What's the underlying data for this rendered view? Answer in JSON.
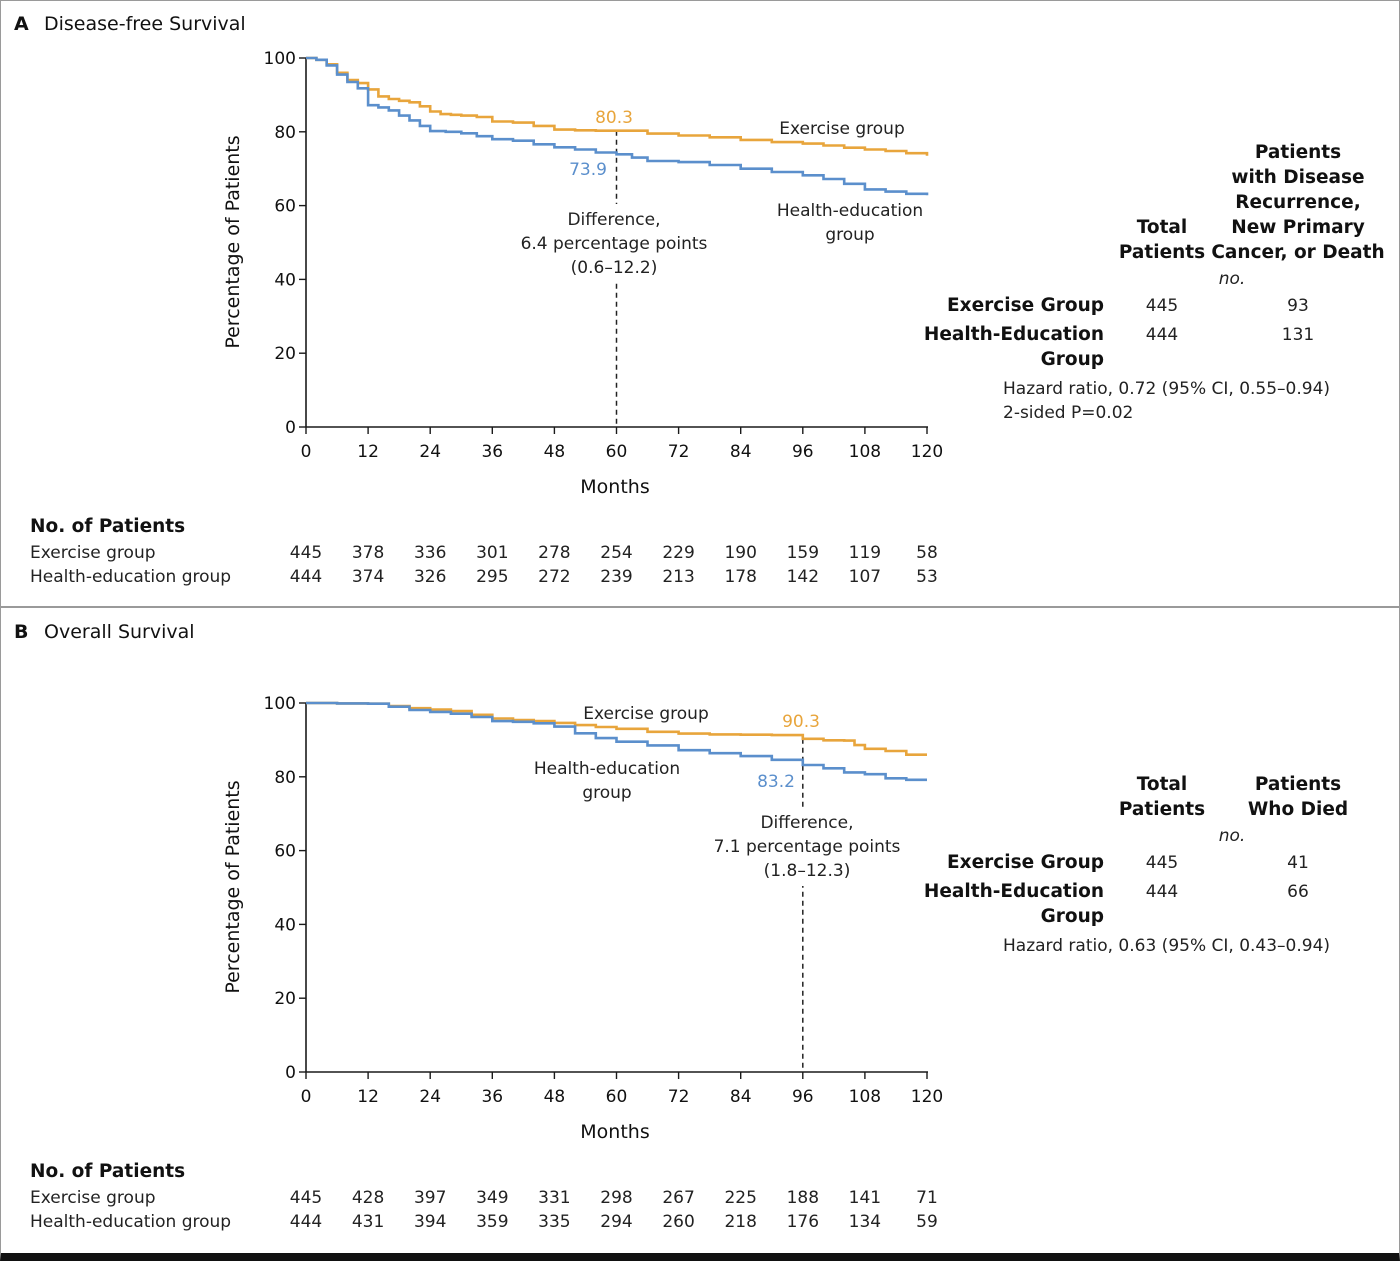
{
  "colors": {
    "exercise": "#E8A53C",
    "health": "#5B8FCC",
    "axis": "#1a1a1a"
  },
  "panels": [
    {
      "letter": "A",
      "title": "Disease-free Survival",
      "ylabel": "Percentage of Patients",
      "xlabel": "Months",
      "yticks": [
        "0",
        "20",
        "40",
        "60",
        "80",
        "100"
      ],
      "xticks": [
        "0",
        "12",
        "24",
        "36",
        "48",
        "60",
        "72",
        "84",
        "96",
        "108",
        "120"
      ],
      "annotations": {
        "exercise_label": "Exercise group",
        "health_label_1": "Health-education",
        "health_label_2": "group",
        "exercise_value": "80.3",
        "health_value": "73.9",
        "diff_1": "Difference,",
        "diff_2": "6.4 percentage points",
        "diff_3": "(0.6–12.2)"
      },
      "table": {
        "col1_h1": "Total",
        "col1_h2": "Patients",
        "col2_h1": "Patients",
        "col2_h2": "with Disease",
        "col2_h3": "Recurrence,",
        "col2_h4": "New Primary",
        "col2_h5": "Cancer, or Death",
        "units": "no.",
        "row1_label": "Exercise Group",
        "row1_total": "445",
        "row1_events": "93",
        "row2_label_1": "Health-Education",
        "row2_label_2": "Group",
        "row2_total": "444",
        "row2_events": "131",
        "stat_1": "Hazard ratio, 0.72 (95% CI, 0.55–0.94)",
        "stat_2": "2-sided P=0.02"
      },
      "risk": {
        "header": "No. of Patients",
        "exercise_label": "Exercise group",
        "health_label": "Health-education group",
        "exercise": [
          "445",
          "378",
          "336",
          "301",
          "278",
          "254",
          "229",
          "190",
          "159",
          "119",
          "58"
        ],
        "health": [
          "444",
          "374",
          "326",
          "295",
          "272",
          "239",
          "213",
          "178",
          "142",
          "107",
          "53"
        ]
      }
    },
    {
      "letter": "B",
      "title": "Overall Survival",
      "ylabel": "Percentage of Patients",
      "xlabel": "Months",
      "yticks": [
        "0",
        "20",
        "40",
        "60",
        "80",
        "100"
      ],
      "xticks": [
        "0",
        "12",
        "24",
        "36",
        "48",
        "60",
        "72",
        "84",
        "96",
        "108",
        "120"
      ],
      "annotations": {
        "exercise_label": "Exercise group",
        "health_label_1": "Health-education",
        "health_label_2": "group",
        "exercise_value": "90.3",
        "health_value": "83.2",
        "diff_1": "Difference,",
        "diff_2": "7.1 percentage points",
        "diff_3": "(1.8–12.3)"
      },
      "table": {
        "col1_h1": "Total",
        "col1_h2": "Patients",
        "col2_h1": "Patients",
        "col2_h2": "Who Died",
        "units": "no.",
        "row1_label": "Exercise Group",
        "row1_total": "445",
        "row1_events": "41",
        "row2_label_1": "Health-Education",
        "row2_label_2": "Group",
        "row2_total": "444",
        "row2_events": "66",
        "stat_1": "Hazard ratio, 0.63 (95% CI, 0.43–0.94)"
      },
      "risk": {
        "header": "No. of Patients",
        "exercise_label": "Exercise group",
        "health_label": "Health-education group",
        "exercise": [
          "445",
          "428",
          "397",
          "349",
          "331",
          "298",
          "267",
          "225",
          "188",
          "141",
          "71"
        ],
        "health": [
          "444",
          "431",
          "394",
          "359",
          "335",
          "294",
          "260",
          "218",
          "176",
          "134",
          "59"
        ]
      }
    }
  ],
  "chart_data": [
    {
      "type": "line",
      "title": "Disease-free Survival",
      "xlabel": "Months",
      "ylabel": "Percentage of Patients",
      "xlim": [
        0,
        120
      ],
      "ylim": [
        0,
        100
      ],
      "step": true,
      "marker": {
        "x": 60,
        "label": "Difference, 6.4 percentage points (0.6–12.2)"
      },
      "series": [
        {
          "name": "Exercise group",
          "x": [
            0,
            2,
            4,
            6,
            8,
            10,
            12,
            14,
            16,
            18,
            20,
            22,
            24,
            26,
            28,
            30,
            33,
            36,
            40,
            44,
            48,
            52,
            56,
            60,
            66,
            72,
            78,
            84,
            90,
            96,
            100,
            104,
            108,
            112,
            116,
            120
          ],
          "y": [
            100,
            99.5,
            98.3,
            96,
            94,
            93.2,
            91.5,
            89.6,
            88.9,
            88.4,
            88,
            86.9,
            85.5,
            84.8,
            84.6,
            84.4,
            84,
            82.8,
            82.5,
            81.6,
            80.6,
            80.4,
            80.3,
            80.3,
            79.5,
            79,
            78.5,
            77.8,
            77.2,
            76.8,
            76.3,
            75.7,
            75.2,
            74.8,
            74.2,
            73.5
          ]
        },
        {
          "name": "Health-education group",
          "x": [
            0,
            2,
            4,
            6,
            8,
            10,
            12,
            14,
            16,
            18,
            20,
            22,
            24,
            27,
            30,
            33,
            36,
            40,
            44,
            48,
            52,
            56,
            60,
            63,
            66,
            72,
            78,
            84,
            90,
            96,
            100,
            104,
            108,
            112,
            116,
            120
          ],
          "y": [
            100,
            99.5,
            98,
            95.5,
            93.5,
            91.8,
            87.2,
            86.6,
            85.8,
            84.4,
            83.1,
            81.6,
            80.2,
            80,
            79.6,
            78.8,
            78,
            77.6,
            76.6,
            75.8,
            75.2,
            74.4,
            73.9,
            73,
            72.1,
            71.8,
            71,
            70,
            69.1,
            68.2,
            67.2,
            65.9,
            64.4,
            63.8,
            63.2,
            62.8
          ]
        }
      ]
    },
    {
      "type": "line",
      "title": "Overall Survival",
      "xlabel": "Months",
      "ylabel": "Percentage of Patients",
      "xlim": [
        0,
        120
      ],
      "ylim": [
        0,
        100
      ],
      "step": true,
      "marker": {
        "x": 96,
        "label": "Difference, 7.1 percentage points (1.8–12.3)"
      },
      "series": [
        {
          "name": "Exercise group",
          "x": [
            0,
            6,
            12,
            16,
            20,
            24,
            28,
            32,
            36,
            40,
            44,
            48,
            52,
            56,
            60,
            66,
            72,
            78,
            84,
            90,
            96,
            100,
            104,
            106,
            108,
            112,
            116,
            120
          ],
          "y": [
            100,
            99.9,
            99.8,
            99.2,
            98.6,
            98.2,
            97.8,
            96.8,
            95.8,
            95.4,
            95.1,
            94.6,
            94,
            93.5,
            93,
            92.2,
            91.7,
            91.5,
            91.4,
            91.3,
            90.3,
            89.9,
            89.8,
            88.6,
            87.6,
            87,
            86,
            86
          ]
        },
        {
          "name": "Health-education group",
          "x": [
            0,
            6,
            12,
            16,
            20,
            24,
            28,
            32,
            36,
            40,
            44,
            48,
            52,
            56,
            60,
            66,
            72,
            78,
            84,
            90,
            96,
            100,
            104,
            108,
            112,
            116,
            120
          ],
          "y": [
            100,
            99.9,
            99.8,
            99,
            98.1,
            97.6,
            97.1,
            96.2,
            95.1,
            94.9,
            94.5,
            93.6,
            91.8,
            90.5,
            89.5,
            88.5,
            87.2,
            86.4,
            85.6,
            84.6,
            83.2,
            82.3,
            81.2,
            80.7,
            79.6,
            79.2,
            79.2
          ]
        }
      ]
    }
  ]
}
